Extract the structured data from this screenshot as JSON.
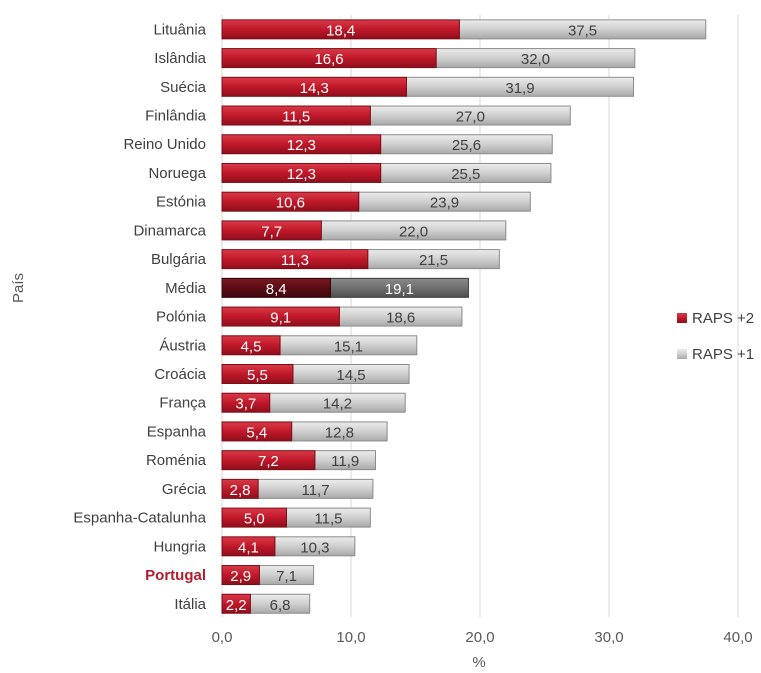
{
  "chart_data": {
    "type": "bar",
    "orientation": "horizontal",
    "stacked": true,
    "categories": [
      "Lituânia",
      "Islândia",
      "Suécia",
      "Finlândia",
      "Reino Unido",
      "Noruega",
      "Estónia",
      "Dinamarca",
      "Bulgária",
      "Média",
      "Polónia",
      "Áustria",
      "Croácia",
      "França",
      "Espanha",
      "Roménia",
      "Grécia",
      "Espanha-Catalunha",
      "Hungria",
      "Portugal",
      "Itália"
    ],
    "highlight_category": "Portugal",
    "average_category": "Média",
    "series": [
      {
        "name": "RAPS +2",
        "color": "#c0182a",
        "values": [
          18.4,
          16.6,
          14.3,
          11.5,
          12.3,
          12.3,
          10.6,
          7.7,
          11.3,
          8.4,
          9.1,
          4.5,
          5.5,
          3.7,
          5.4,
          7.2,
          2.8,
          5.0,
          4.1,
          2.9,
          2.2
        ],
        "labels": [
          "18,4",
          "16,6",
          "14,3",
          "11,5",
          "12,3",
          "12,3",
          "10,6",
          "7,7",
          "11,3",
          "8,4",
          "9,1",
          "4,5",
          "5,5",
          "3,7",
          "5,4",
          "7,2",
          "2,8",
          "5,0",
          "4,1",
          "2,9",
          "2,2"
        ]
      },
      {
        "name": "RAPS +1",
        "color": "#c8c8c8",
        "totals": [
          37.5,
          32.0,
          31.9,
          27.0,
          25.6,
          25.5,
          23.9,
          22.0,
          21.5,
          19.1,
          18.6,
          15.1,
          14.5,
          14.2,
          12.8,
          11.9,
          11.7,
          11.5,
          10.3,
          7.1,
          6.8
        ],
        "labels": [
          "37,5",
          "32,0",
          "31,9",
          "27,0",
          "25,6",
          "25,5",
          "23,9",
          "22,0",
          "21,5",
          "19,1",
          "18,6",
          "15,1",
          "14,5",
          "14,2",
          "12,8",
          "11,9",
          "11,7",
          "11,5",
          "10,3",
          "7,1",
          "6,8"
        ]
      }
    ],
    "xlabel": "%",
    "ylabel": "País",
    "xlim": [
      0,
      40
    ],
    "xticks": [
      "0,0",
      "10,0",
      "20,0",
      "30,0",
      "40,0"
    ],
    "grid": "vertical",
    "legend_position": "right"
  }
}
